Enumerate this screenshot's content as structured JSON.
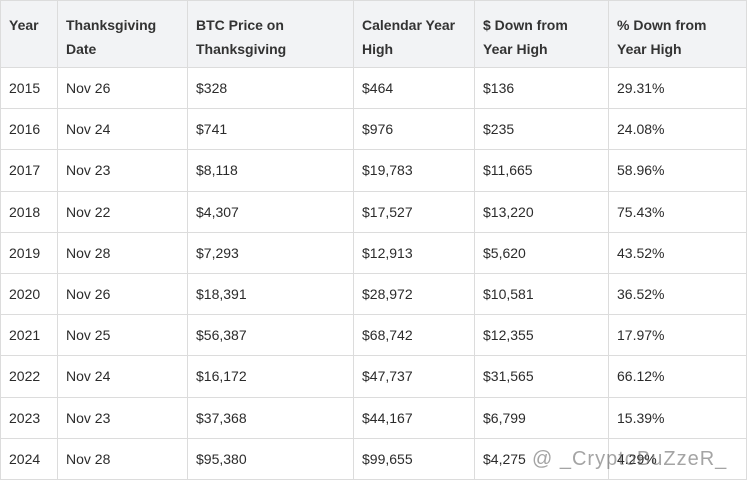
{
  "table": {
    "header": [
      "Year",
      "Thanksgiving Date",
      "BTC Price on Thanksgiving",
      "Calendar Year High",
      "$ Down from Year High",
      "% Down from Year High"
    ],
    "rows": [
      [
        "2015",
        "Nov 26",
        "$328",
        "$464",
        "$136",
        "29.31%"
      ],
      [
        "2016",
        "Nov 24",
        "$741",
        "$976",
        "$235",
        "24.08%"
      ],
      [
        "2017",
        "Nov 23",
        "$8,118",
        "$19,783",
        "$11,665",
        "58.96%"
      ],
      [
        "2018",
        "Nov 22",
        "$4,307",
        "$17,527",
        "$13,220",
        "75.43%"
      ],
      [
        "2019",
        "Nov 28",
        "$7,293",
        "$12,913",
        "$5,620",
        "43.52%"
      ],
      [
        "2020",
        "Nov 26",
        "$18,391",
        "$28,972",
        "$10,581",
        "36.52%"
      ],
      [
        "2021",
        "Nov 25",
        "$56,387",
        "$68,742",
        "$12,355",
        "17.97%"
      ],
      [
        "2022",
        "Nov 24",
        "$16,172",
        "$47,737",
        "$31,565",
        "66.12%"
      ],
      [
        "2023",
        "Nov 23",
        "$37,368",
        "$44,167",
        "$6,799",
        "15.39%"
      ],
      [
        "2024",
        "Nov 28",
        "$95,380",
        "$99,655",
        "$4,275",
        "4.29%"
      ]
    ]
  },
  "watermark": "@ _CryptoBuZzeR_"
}
